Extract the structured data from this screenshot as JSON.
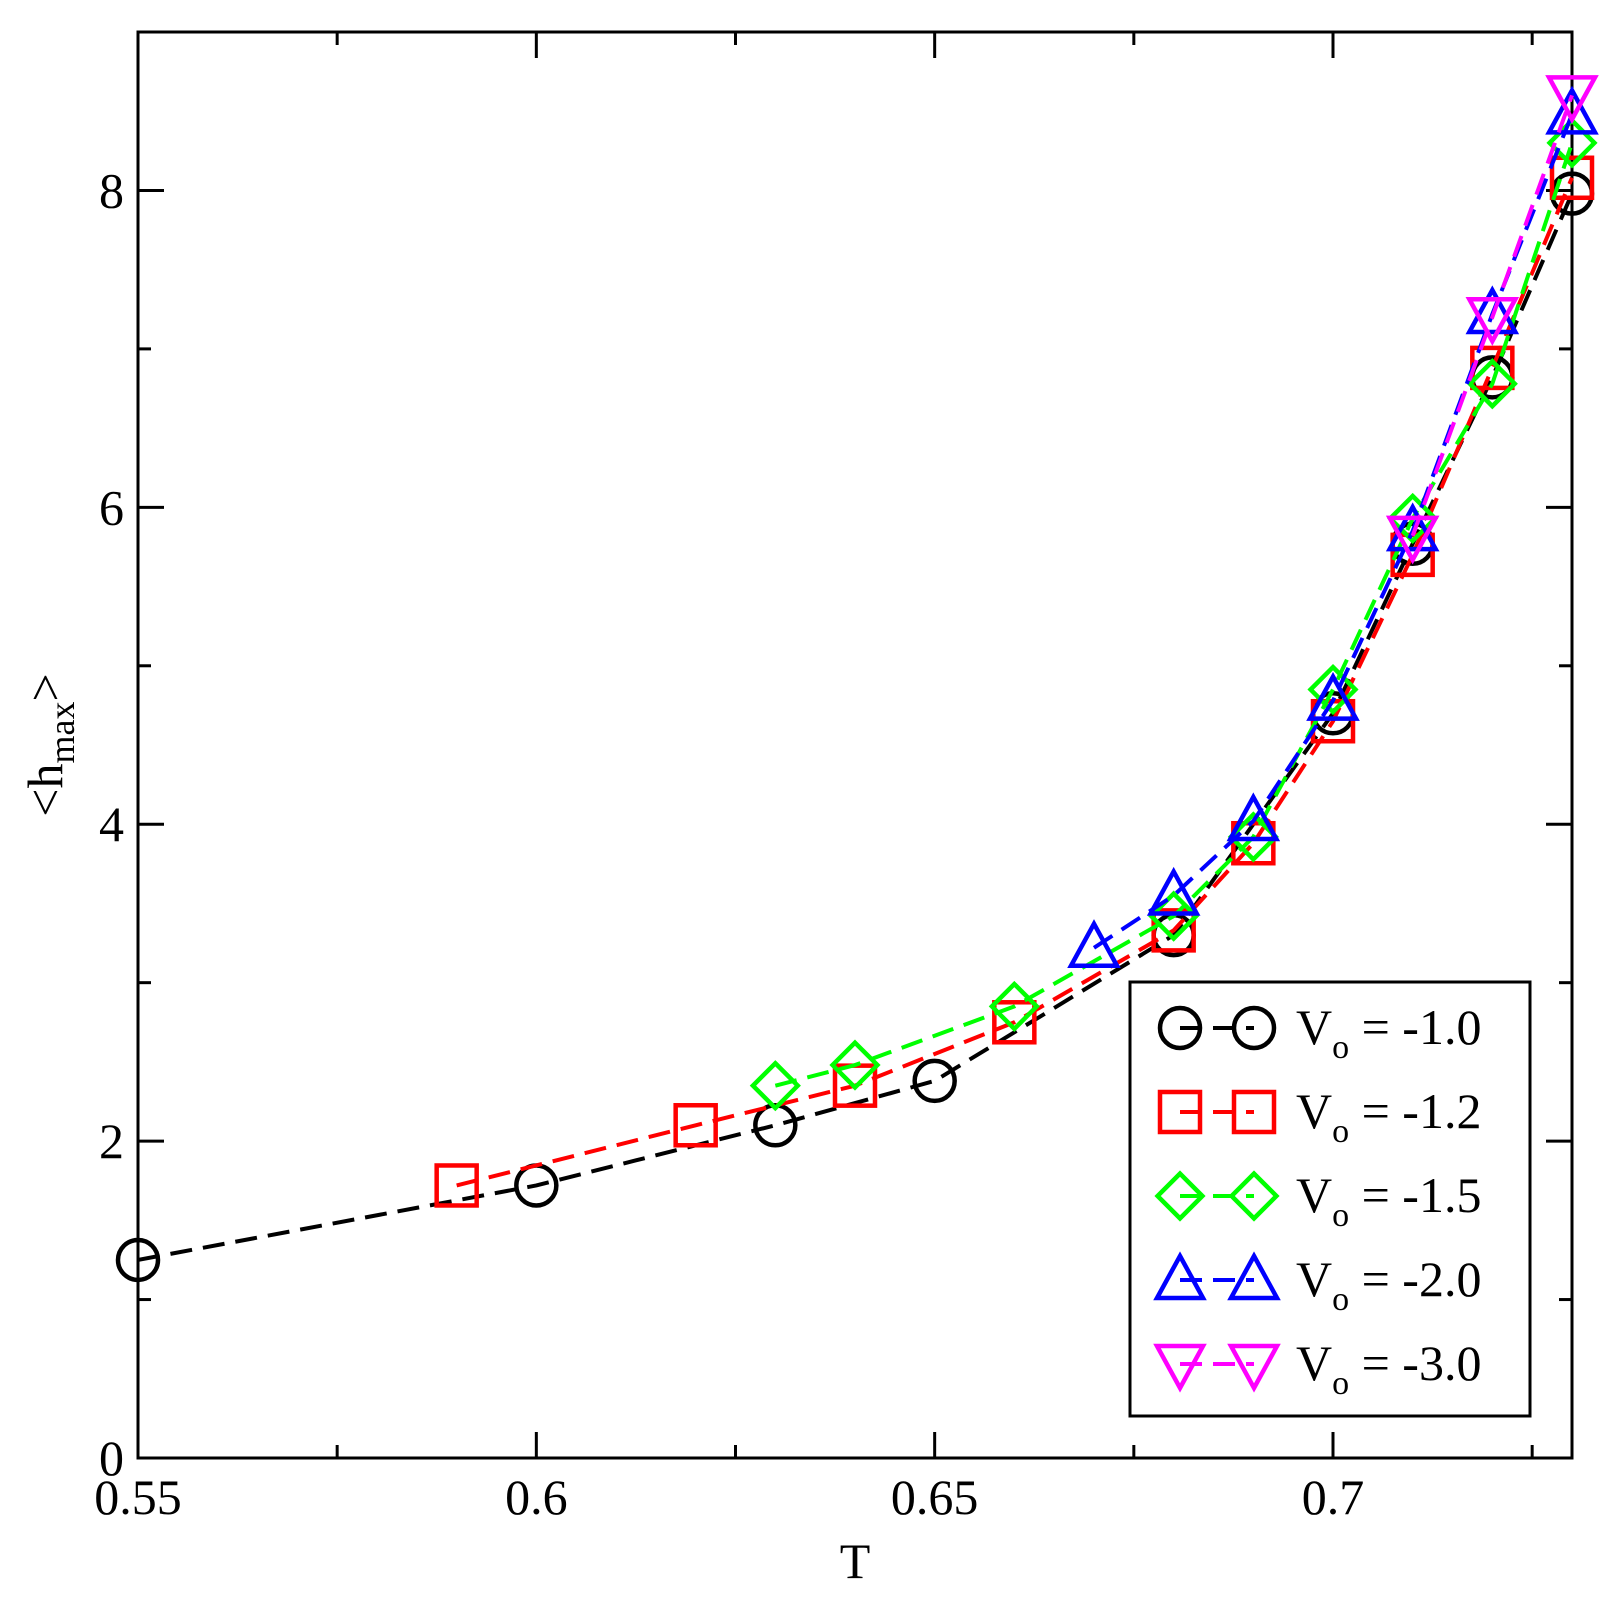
{
  "chart_data": {
    "type": "line",
    "xlabel": "T",
    "ylabel": {
      "main": "<h",
      "sub": "max",
      "close": ">"
    },
    "xlim": [
      0.55,
      0.73
    ],
    "ylim": [
      0,
      9
    ],
    "x_ticks": [
      0.55,
      0.6,
      0.65,
      0.7
    ],
    "x_tick_labels": [
      "0.55",
      "0.6",
      "0.65",
      "0.7"
    ],
    "y_ticks": [
      0,
      2,
      4,
      6,
      8
    ],
    "y_tick_labels": [
      "0",
      "2",
      "4",
      "6",
      "8"
    ],
    "grid": false,
    "legend_position": "bottom-right",
    "series": [
      {
        "name": "V_o = -1.0",
        "label_main": "V",
        "label_sub": "o",
        "label_rest": " = -1.0",
        "color": "#000000",
        "marker": "circle",
        "x": [
          0.55,
          0.6,
          0.63,
          0.65,
          0.68,
          0.7,
          0.71,
          0.72,
          0.73
        ],
        "y": [
          1.25,
          1.72,
          2.1,
          2.38,
          3.3,
          4.7,
          5.77,
          6.82,
          7.98
        ]
      },
      {
        "name": "V_o = -1.2",
        "label_main": "V",
        "label_sub": "o",
        "label_rest": " = -1.2",
        "color": "#ff0000",
        "marker": "square",
        "x": [
          0.59,
          0.62,
          0.64,
          0.66,
          0.68,
          0.69,
          0.7,
          0.71,
          0.72,
          0.73
        ],
        "y": [
          1.72,
          2.1,
          2.35,
          2.75,
          3.33,
          3.88,
          4.65,
          5.7,
          6.88,
          8.08
        ]
      },
      {
        "name": "V_o = -1.5",
        "label_main": "V",
        "label_sub": "o",
        "label_rest": " = -1.5",
        "color": "#00ff00",
        "marker": "diamond",
        "x": [
          0.63,
          0.64,
          0.66,
          0.68,
          0.69,
          0.7,
          0.71,
          0.72,
          0.73
        ],
        "y": [
          2.35,
          2.48,
          2.85,
          3.42,
          3.92,
          4.85,
          5.93,
          6.78,
          8.3
        ]
      },
      {
        "name": "V_o = -2.0",
        "label_main": "V",
        "label_sub": "o",
        "label_rest": " = -2.0",
        "color": "#0000ff",
        "marker": "triangle-up",
        "x": [
          0.67,
          0.68,
          0.69,
          0.7,
          0.71,
          0.72,
          0.73
        ],
        "y": [
          3.22,
          3.55,
          4.02,
          4.78,
          5.85,
          7.22,
          8.48
        ]
      },
      {
        "name": "V_o = -3.0",
        "label_main": "V",
        "label_sub": "o",
        "label_rest": " = -3.0",
        "color": "#ff00ff",
        "marker": "triangle-down",
        "x": [
          0.71,
          0.72,
          0.73
        ],
        "y": [
          5.82,
          7.2,
          8.6
        ]
      }
    ]
  }
}
